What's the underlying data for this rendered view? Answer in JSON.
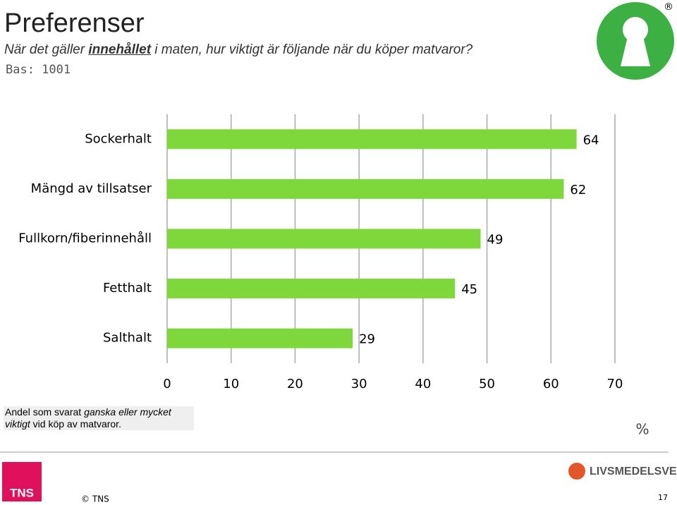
{
  "header": {
    "title": "Preferenser",
    "subtitle": [
      "När det gäller ",
      "innehållet",
      " i maten, hur viktigt är följande när du köper matvaror?"
    ],
    "base": "Bas: 1001",
    "logo_mark": "®"
  },
  "chart_data": {
    "type": "bar",
    "orientation": "horizontal",
    "categories": [
      "Sockerhalt",
      "Mängd av tillsatser",
      "Fullkorn/fiberinnehåll",
      "Fetthalt",
      "Salthalt"
    ],
    "values": [
      64,
      62,
      49,
      45,
      29
    ],
    "color": "#7ed83b",
    "xlim": [
      0,
      70
    ],
    "xticks": [
      0,
      10,
      20,
      30,
      40,
      50,
      60,
      70
    ],
    "xlabel": "%",
    "grid": true
  },
  "note": [
    "Andel som svarat ",
    "ganska eller mycket viktigt",
    " vid köp av matvaror."
  ],
  "footer": {
    "logo_left": "TNS",
    "copyright": "© TNS",
    "logo_right": "LIVSMEDELSVERKET",
    "page": "17"
  }
}
